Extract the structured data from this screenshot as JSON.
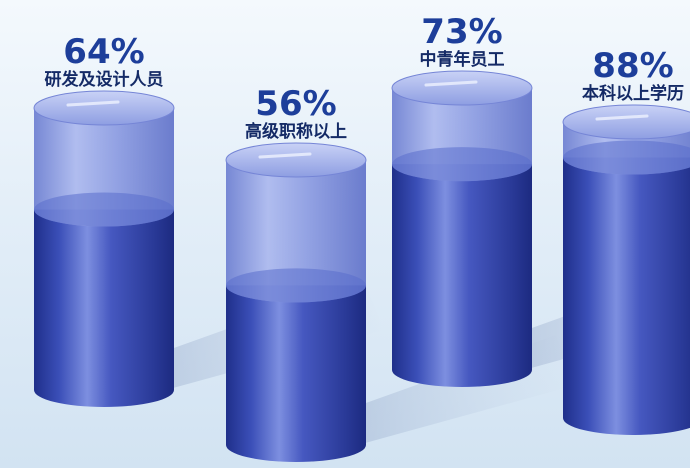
{
  "chart_data": {
    "type": "bar",
    "title": "",
    "xlabel": "",
    "ylabel": "",
    "ylim": [
      0,
      100
    ],
    "categories": [
      "研发及设计人员",
      "高级职称以上",
      "中青年员工",
      "本科以上学历"
    ],
    "values": [
      64,
      56,
      73,
      88
    ],
    "value_labels": [
      "64%",
      "56%",
      "73%",
      "88%"
    ],
    "grid": false,
    "legend": "none",
    "style": "3d-cylinder",
    "colors": {
      "liquid": "#3b4fb8",
      "liquid_dark": "#1f2f8a",
      "glass": "#8f9fe3",
      "label": "#1d3e9a"
    }
  }
}
